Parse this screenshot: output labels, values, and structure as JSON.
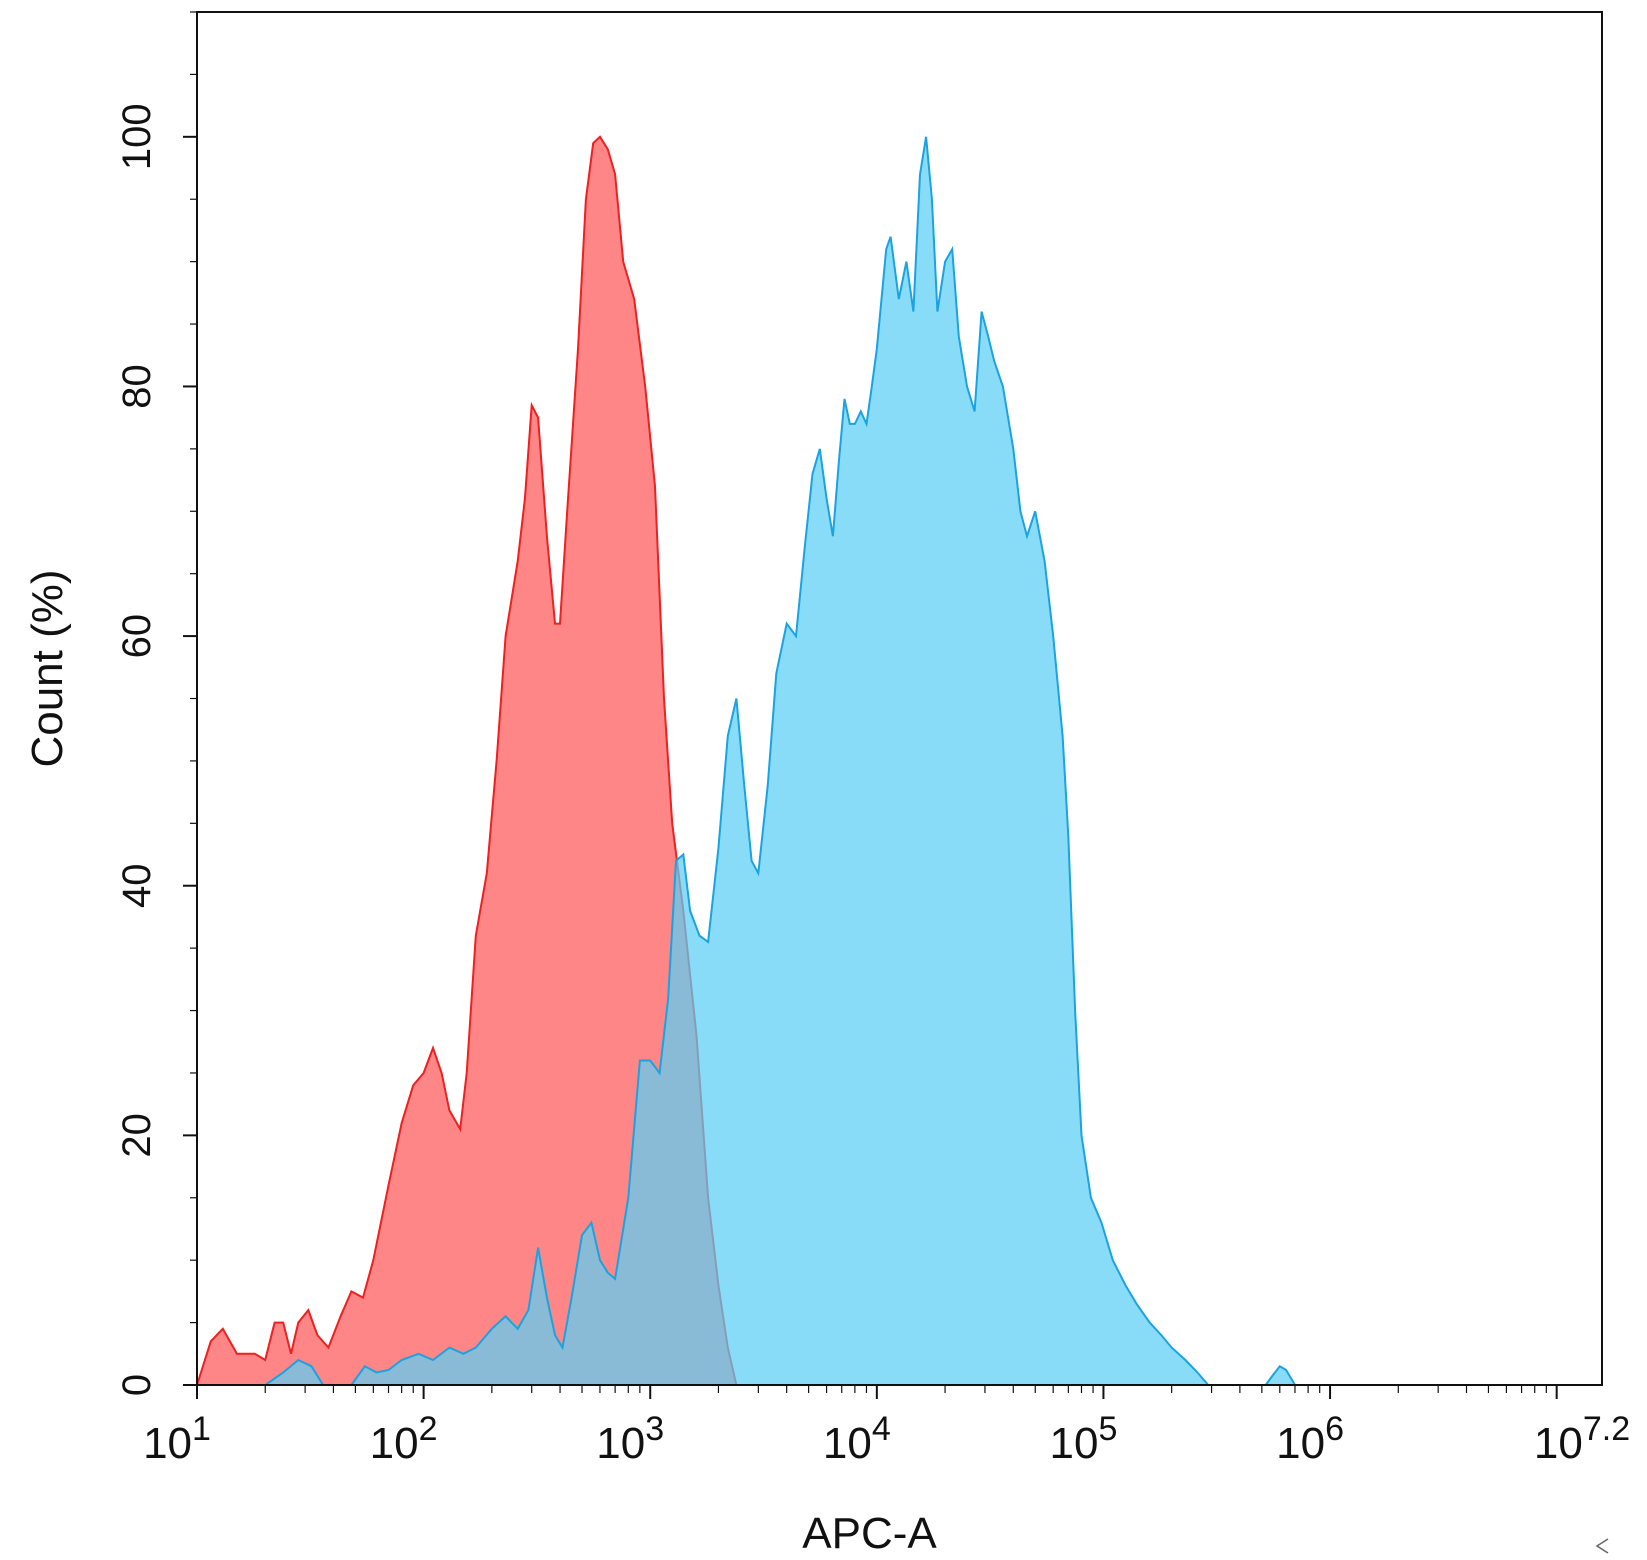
{
  "chart_data": {
    "type": "area",
    "xlabel": "APC-A",
    "ylabel": "Count (%)",
    "x_scale": "log",
    "xlim": [
      10,
      15848931.92
    ],
    "ylim": [
      0,
      110
    ],
    "y_ticks": [
      {
        "value": 0,
        "label": "0"
      },
      {
        "value": 20,
        "label": "20"
      },
      {
        "value": 40,
        "label": "40"
      },
      {
        "value": 60,
        "label": "60"
      },
      {
        "value": 80,
        "label": "80"
      },
      {
        "value": 100,
        "label": "100"
      }
    ],
    "x_ticks": [
      {
        "value": 10,
        "base": "10",
        "exp": "1"
      },
      {
        "value": 100,
        "base": "10",
        "exp": "2"
      },
      {
        "value": 1000,
        "base": "10",
        "exp": "3"
      },
      {
        "value": 10000,
        "base": "10",
        "exp": "4"
      },
      {
        "value": 100000,
        "base": "10",
        "exp": "5"
      },
      {
        "value": 1000000,
        "base": "10",
        "exp": "6"
      },
      {
        "value": 15848931.92,
        "base": "10",
        "exp": "7.2"
      }
    ],
    "grid": false,
    "legend": "none",
    "series": [
      {
        "fill": "#ff6b6b",
        "fill_opacity": 0.82,
        "stroke": "#ee2020",
        "points": [
          [
            10,
            0
          ],
          [
            11.5,
            3.5
          ],
          [
            13,
            4.5
          ],
          [
            15,
            2.5
          ],
          [
            18,
            2.5
          ],
          [
            20,
            2.0
          ],
          [
            22,
            5.0
          ],
          [
            24,
            5.0
          ],
          [
            26,
            2.5
          ],
          [
            28,
            5.0
          ],
          [
            31,
            6.0
          ],
          [
            34,
            4.0
          ],
          [
            38,
            3.0
          ],
          [
            43,
            5.5
          ],
          [
            48,
            7.5
          ],
          [
            54,
            7.0
          ],
          [
            60,
            10.0
          ],
          [
            70,
            16.0
          ],
          [
            80,
            21.0
          ],
          [
            90,
            24.0
          ],
          [
            100,
            25.0
          ],
          [
            110,
            27.0
          ],
          [
            120,
            25.0
          ],
          [
            130,
            22.0
          ],
          [
            145,
            20.5
          ],
          [
            155,
            25.0
          ],
          [
            170,
            36.0
          ],
          [
            190,
            41.0
          ],
          [
            210,
            50.0
          ],
          [
            230,
            60.0
          ],
          [
            260,
            66.0
          ],
          [
            280,
            71.0
          ],
          [
            300,
            78.5
          ],
          [
            320,
            77.5
          ],
          [
            350,
            68.0
          ],
          [
            380,
            61.0
          ],
          [
            400,
            61.0
          ],
          [
            430,
            70.0
          ],
          [
            480,
            83.0
          ],
          [
            520,
            95.0
          ],
          [
            560,
            99.5
          ],
          [
            600,
            100
          ],
          [
            650,
            99.0
          ],
          [
            700,
            97.0
          ],
          [
            760,
            90.0
          ],
          [
            850,
            87.0
          ],
          [
            950,
            80.0
          ],
          [
            1050,
            72.0
          ],
          [
            1150,
            55.0
          ],
          [
            1250,
            45.0
          ],
          [
            1400,
            38.0
          ],
          [
            1600,
            28.0
          ],
          [
            1800,
            15.0
          ],
          [
            2000,
            8.0
          ],
          [
            2200,
            3.0
          ],
          [
            2400,
            0
          ]
        ]
      },
      {
        "fill": "#5ccff5",
        "fill_opacity": 0.72,
        "stroke": "#1aa3e0",
        "points": [
          [
            20,
            0
          ],
          [
            24,
            1.0
          ],
          [
            28,
            2.0
          ],
          [
            32,
            1.5
          ],
          [
            36,
            0
          ],
          [
            48,
            0
          ],
          [
            55,
            1.5
          ],
          [
            62,
            1.0
          ],
          [
            70,
            1.2
          ],
          [
            80,
            2.0
          ],
          [
            95,
            2.5
          ],
          [
            110,
            2.0
          ],
          [
            130,
            3.0
          ],
          [
            150,
            2.5
          ],
          [
            170,
            3.0
          ],
          [
            200,
            4.5
          ],
          [
            230,
            5.5
          ],
          [
            260,
            4.5
          ],
          [
            290,
            6.0
          ],
          [
            320,
            11.0
          ],
          [
            350,
            7.0
          ],
          [
            380,
            4.0
          ],
          [
            410,
            3.0
          ],
          [
            450,
            7.0
          ],
          [
            500,
            12.0
          ],
          [
            550,
            13.0
          ],
          [
            600,
            10.0
          ],
          [
            650,
            9.0
          ],
          [
            700,
            8.5
          ],
          [
            800,
            15.0
          ],
          [
            900,
            26.0
          ],
          [
            1000,
            26.0
          ],
          [
            1100,
            25.0
          ],
          [
            1200,
            31.0
          ],
          [
            1300,
            42.0
          ],
          [
            1400,
            42.5
          ],
          [
            1500,
            38.0
          ],
          [
            1650,
            36.0
          ],
          [
            1800,
            35.5
          ],
          [
            2000,
            43.0
          ],
          [
            2200,
            52.0
          ],
          [
            2400,
            55.0
          ],
          [
            2600,
            48.0
          ],
          [
            2800,
            42.0
          ],
          [
            3000,
            41.0
          ],
          [
            3300,
            48.0
          ],
          [
            3600,
            57.0
          ],
          [
            4000,
            61.0
          ],
          [
            4400,
            60.0
          ],
          [
            4800,
            67.0
          ],
          [
            5200,
            73.0
          ],
          [
            5600,
            75.0
          ],
          [
            6000,
            71.0
          ],
          [
            6400,
            68.0
          ],
          [
            6800,
            74.0
          ],
          [
            7200,
            79.0
          ],
          [
            7600,
            77.0
          ],
          [
            8000,
            77.0
          ],
          [
            8500,
            78.0
          ],
          [
            9000,
            77.0
          ],
          [
            9500,
            80.0
          ],
          [
            10000,
            83.0
          ],
          [
            11000,
            91.0
          ],
          [
            11500,
            92.0
          ],
          [
            12500,
            87.0
          ],
          [
            13500,
            90.0
          ],
          [
            14500,
            86.0
          ],
          [
            15500,
            97.0
          ],
          [
            16500,
            100
          ],
          [
            17500,
            95.0
          ],
          [
            18500,
            86.0
          ],
          [
            20000,
            90.0
          ],
          [
            21500,
            91.0
          ],
          [
            23000,
            84.0
          ],
          [
            25000,
            80.0
          ],
          [
            27000,
            78.0
          ],
          [
            29000,
            86.0
          ],
          [
            31000,
            84.0
          ],
          [
            33000,
            82.0
          ],
          [
            36000,
            80.0
          ],
          [
            40000,
            75.0
          ],
          [
            43000,
            70.0
          ],
          [
            46000,
            68.0
          ],
          [
            50000,
            70.0
          ],
          [
            55000,
            66.0
          ],
          [
            60000,
            60.0
          ],
          [
            66000,
            52.0
          ],
          [
            70000,
            44.0
          ],
          [
            75000,
            30.0
          ],
          [
            80000,
            20.0
          ],
          [
            88000,
            15.0
          ],
          [
            98000,
            13.0
          ],
          [
            110000,
            10.0
          ],
          [
            125000,
            8.0
          ],
          [
            140000,
            6.5
          ],
          [
            160000,
            5.0
          ],
          [
            180000,
            4.0
          ],
          [
            200000,
            3.0
          ],
          [
            230000,
            2.0
          ],
          [
            260000,
            1.0
          ],
          [
            290000,
            0
          ],
          [
            520000,
            0
          ],
          [
            560000,
            0.8
          ],
          [
            600000,
            1.5
          ],
          [
            640000,
            1.2
          ],
          [
            700000,
            0
          ]
        ]
      }
    ]
  }
}
